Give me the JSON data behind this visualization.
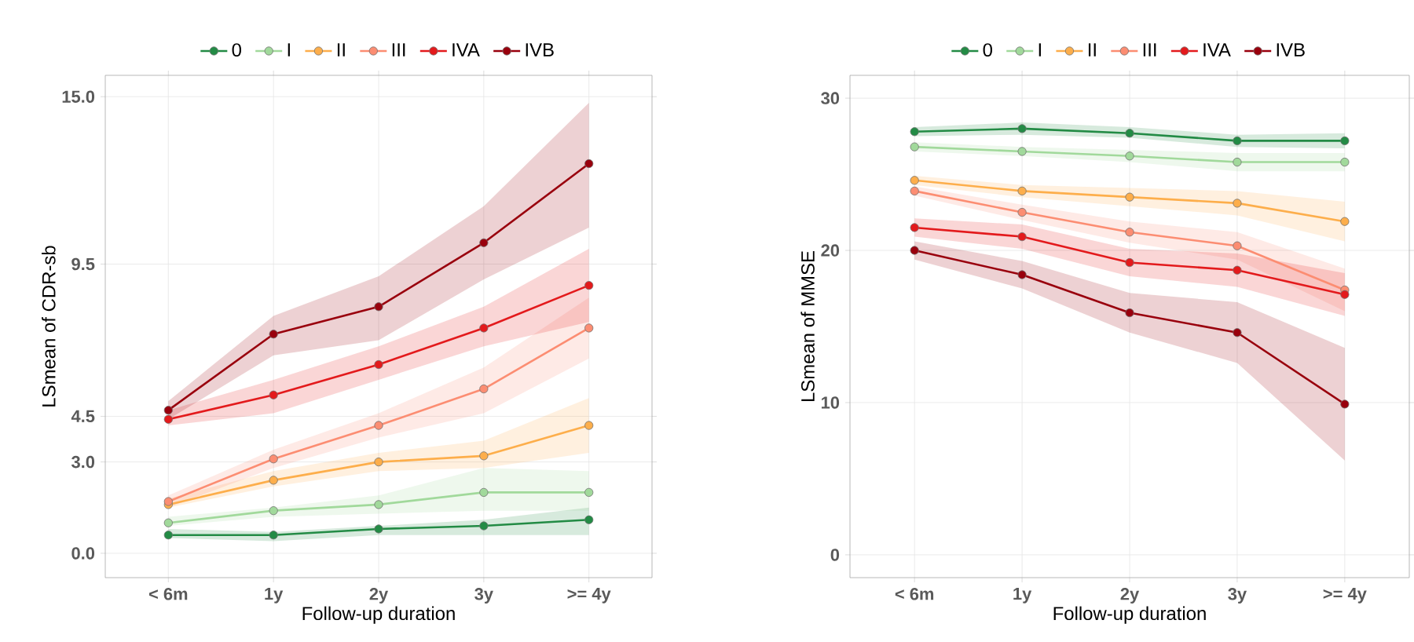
{
  "chart_data": [
    {
      "type": "line",
      "xlabel": "Follow-up duration",
      "ylabel": "LSmean of CDR-sb",
      "categories": [
        "< 6m",
        "1y",
        "2y",
        "3y",
        ">= 4y"
      ],
      "ylim": [
        -0.8,
        15.7
      ],
      "yticks": [
        {
          "value": 0,
          "label": "0.0"
        },
        {
          "value": 3,
          "label": "3.0"
        },
        {
          "value": 4.5,
          "label": "4.5"
        },
        {
          "value": 9.5,
          "label": "9.5"
        },
        {
          "value": 15,
          "label": "15.0"
        }
      ],
      "grid": true,
      "legend": "top",
      "marker": "circle",
      "series": [
        {
          "name": "0",
          "color": "#238b45",
          "values": [
            0.6,
            0.6,
            0.8,
            0.9,
            1.1
          ],
          "lower": [
            0.5,
            0.4,
            0.6,
            0.6,
            0.6
          ],
          "upper": [
            0.8,
            0.7,
            0.9,
            1.1,
            1.5
          ]
        },
        {
          "name": "I",
          "color": "#a1d99b",
          "values": [
            1.0,
            1.4,
            1.6,
            2.0,
            2.0
          ],
          "lower": [
            0.9,
            1.2,
            1.3,
            1.4,
            1.4
          ],
          "upper": [
            1.2,
            1.5,
            1.9,
            2.8,
            2.7
          ]
        },
        {
          "name": "II",
          "color": "#fdae4b",
          "values": [
            1.6,
            2.4,
            3.0,
            3.2,
            4.2
          ],
          "lower": [
            1.5,
            2.2,
            2.7,
            2.8,
            3.3
          ],
          "upper": [
            1.8,
            2.7,
            3.3,
            3.7,
            5.1
          ]
        },
        {
          "name": "III",
          "color": "#fc8d72",
          "values": [
            1.7,
            3.1,
            4.2,
            5.4,
            7.4
          ],
          "lower": [
            1.5,
            2.8,
            3.8,
            4.6,
            6.4
          ],
          "upper": [
            1.9,
            3.4,
            4.6,
            6.1,
            8.4
          ]
        },
        {
          "name": "IVA",
          "color": "#e31a1c",
          "values": [
            4.4,
            5.2,
            6.2,
            7.4,
            8.8
          ],
          "lower": [
            4.2,
            4.6,
            5.7,
            6.8,
            7.6
          ],
          "upper": [
            4.7,
            5.7,
            6.8,
            8.1,
            10.0
          ]
        },
        {
          "name": "IVB",
          "color": "#99000d",
          "values": [
            4.7,
            7.2,
            8.1,
            10.2,
            12.8
          ],
          "lower": [
            4.4,
            6.5,
            7.0,
            9.0,
            10.7
          ],
          "upper": [
            5.0,
            7.8,
            9.1,
            11.4,
            14.8
          ]
        }
      ]
    },
    {
      "type": "line",
      "xlabel": "Follow-up duration",
      "ylabel": "LSmean of MMSE",
      "categories": [
        "< 6m",
        "1y",
        "2y",
        "3y",
        ">= 4y"
      ],
      "ylim": [
        -1.5,
        31.5
      ],
      "yticks": [
        0,
        10,
        20,
        30
      ],
      "grid": true,
      "legend": "top",
      "marker": "circle",
      "series": [
        {
          "name": "0",
          "color": "#238b45",
          "values": [
            27.8,
            28.0,
            27.7,
            27.2,
            27.2
          ],
          "lower": [
            27.5,
            27.6,
            27.4,
            26.8,
            26.7
          ],
          "upper": [
            28.1,
            28.4,
            28.1,
            27.6,
            27.7
          ]
        },
        {
          "name": "I",
          "color": "#a1d99b",
          "values": [
            26.8,
            26.5,
            26.2,
            25.8,
            25.8
          ],
          "lower": [
            26.5,
            26.2,
            25.8,
            25.2,
            25.2
          ],
          "upper": [
            27.1,
            26.8,
            26.6,
            26.4,
            26.4
          ]
        },
        {
          "name": "II",
          "color": "#fdae4b",
          "values": [
            24.6,
            23.9,
            23.5,
            23.1,
            21.9
          ],
          "lower": [
            24.3,
            23.5,
            22.9,
            22.3,
            20.6
          ],
          "upper": [
            24.9,
            24.3,
            24.1,
            23.9,
            23.2
          ]
        },
        {
          "name": "III",
          "color": "#fc8d72",
          "values": [
            23.9,
            22.5,
            21.2,
            20.3,
            17.4
          ],
          "lower": [
            23.6,
            22.0,
            20.5,
            19.4,
            16.0
          ],
          "upper": [
            24.2,
            23.0,
            21.9,
            21.2,
            18.8
          ]
        },
        {
          "name": "IVA",
          "color": "#e31a1c",
          "values": [
            21.5,
            20.9,
            19.2,
            18.7,
            17.1
          ],
          "lower": [
            20.9,
            20.1,
            18.3,
            17.6,
            15.7
          ],
          "upper": [
            22.1,
            21.7,
            20.1,
            19.8,
            18.5
          ]
        },
        {
          "name": "IVB",
          "color": "#99000d",
          "values": [
            20.0,
            18.4,
            15.9,
            14.6,
            9.9
          ],
          "lower": [
            19.4,
            17.5,
            14.6,
            12.6,
            6.2
          ],
          "upper": [
            20.6,
            19.3,
            17.2,
            16.6,
            13.6
          ]
        }
      ]
    }
  ]
}
